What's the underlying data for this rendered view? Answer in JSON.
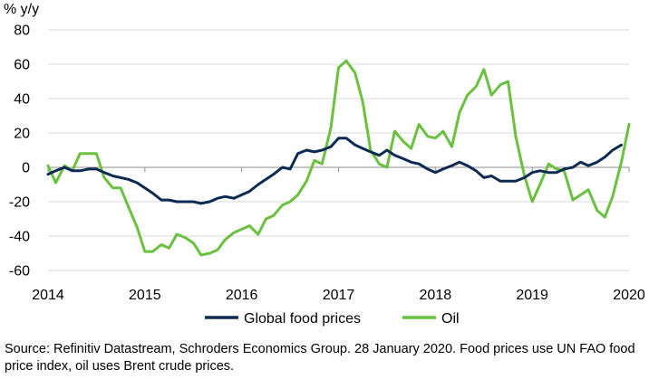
{
  "chart_data": {
    "type": "line",
    "unit_label": "% y/y",
    "xlabel": "",
    "ylabel": "",
    "ylim": [
      -60,
      80
    ],
    "yticks": [
      80,
      60,
      40,
      20,
      0,
      -20,
      -40,
      -60
    ],
    "xlim": [
      2014,
      2020
    ],
    "xticks": [
      "2014",
      "2015",
      "2016",
      "2017",
      "2018",
      "2019",
      "2020"
    ],
    "grid": "horizontal",
    "legend_position": "bottom",
    "series": [
      {
        "name": "Global food prices",
        "color": "#0d2b52",
        "x": [
          2014.0,
          2014.08,
          2014.17,
          2014.25,
          2014.33,
          2014.42,
          2014.5,
          2014.58,
          2014.67,
          2014.75,
          2014.83,
          2014.92,
          2015.0,
          2015.08,
          2015.17,
          2015.25,
          2015.33,
          2015.42,
          2015.5,
          2015.58,
          2015.67,
          2015.75,
          2015.83,
          2015.92,
          2016.0,
          2016.08,
          2016.17,
          2016.25,
          2016.33,
          2016.42,
          2016.5,
          2016.58,
          2016.67,
          2016.75,
          2016.83,
          2016.92,
          2017.0,
          2017.08,
          2017.17,
          2017.25,
          2017.33,
          2017.42,
          2017.5,
          2017.58,
          2017.67,
          2017.75,
          2017.83,
          2017.92,
          2018.0,
          2018.08,
          2018.17,
          2018.25,
          2018.33,
          2018.42,
          2018.5,
          2018.58,
          2018.67,
          2018.75,
          2018.83,
          2018.92,
          2019.0,
          2019.08,
          2019.17,
          2019.25,
          2019.33,
          2019.42,
          2019.5,
          2019.58,
          2019.67,
          2019.75,
          2019.83,
          2019.92
        ],
        "values": [
          -4,
          -2,
          0,
          -2,
          -2,
          -1,
          -1,
          -3,
          -5,
          -6,
          -7,
          -9,
          -12,
          -15,
          -19,
          -19,
          -20,
          -20,
          -20,
          -21,
          -20,
          -18,
          -17,
          -18,
          -16,
          -14,
          -10,
          -7,
          -4,
          0,
          -1,
          8,
          10,
          9,
          10,
          12,
          17,
          17,
          13,
          11,
          9,
          7,
          10,
          7,
          5,
          3,
          2,
          -1,
          -3,
          -1,
          1,
          3,
          1,
          -2,
          -6,
          -5,
          -8,
          -8,
          -8,
          -6,
          -3,
          -2,
          -3,
          -3,
          -1,
          0,
          3,
          1,
          3,
          6,
          10,
          13
        ]
      },
      {
        "name": "Oil",
        "color": "#6ac13f",
        "x": [
          2014.0,
          2014.08,
          2014.17,
          2014.25,
          2014.33,
          2014.42,
          2014.5,
          2014.58,
          2014.67,
          2014.75,
          2014.83,
          2014.92,
          2015.0,
          2015.08,
          2015.17,
          2015.25,
          2015.33,
          2015.42,
          2015.5,
          2015.58,
          2015.67,
          2015.75,
          2015.83,
          2015.92,
          2016.0,
          2016.08,
          2016.17,
          2016.25,
          2016.33,
          2016.42,
          2016.5,
          2016.58,
          2016.67,
          2016.75,
          2016.83,
          2016.92,
          2017.0,
          2017.08,
          2017.17,
          2017.25,
          2017.33,
          2017.42,
          2017.5,
          2017.58,
          2017.67,
          2017.75,
          2017.83,
          2017.92,
          2018.0,
          2018.08,
          2018.17,
          2018.25,
          2018.33,
          2018.42,
          2018.5,
          2018.58,
          2018.67,
          2018.75,
          2018.83,
          2018.92,
          2019.0,
          2019.08,
          2019.17,
          2019.25,
          2019.33,
          2019.42,
          2019.5,
          2019.58,
          2019.67,
          2019.75,
          2019.83,
          2019.92,
          2020.0
        ],
        "values": [
          1,
          -9,
          1,
          -2,
          8,
          8,
          8,
          -6,
          -12,
          -12,
          -23,
          -35,
          -49,
          -49,
          -45,
          -47,
          -39,
          -41,
          -44,
          -51,
          -50,
          -48,
          -42,
          -38,
          -36,
          -34,
          -39,
          -30,
          -28,
          -22,
          -20,
          -16,
          -8,
          4,
          2,
          23,
          58,
          62,
          55,
          38,
          10,
          2,
          0,
          21,
          15,
          11,
          25,
          18,
          17,
          21,
          12,
          32,
          42,
          47,
          57,
          42,
          48,
          50,
          18,
          -5,
          -20,
          -10,
          2,
          -1,
          -2,
          -19,
          -16,
          -13,
          -25,
          -29,
          -17,
          3,
          25
        ]
      }
    ],
    "source": "Source: Refinitiv Datastream, Schroders Economics Group. 28 January 2020. Food prices use UN FAO food price index, oil uses Brent crude prices."
  }
}
